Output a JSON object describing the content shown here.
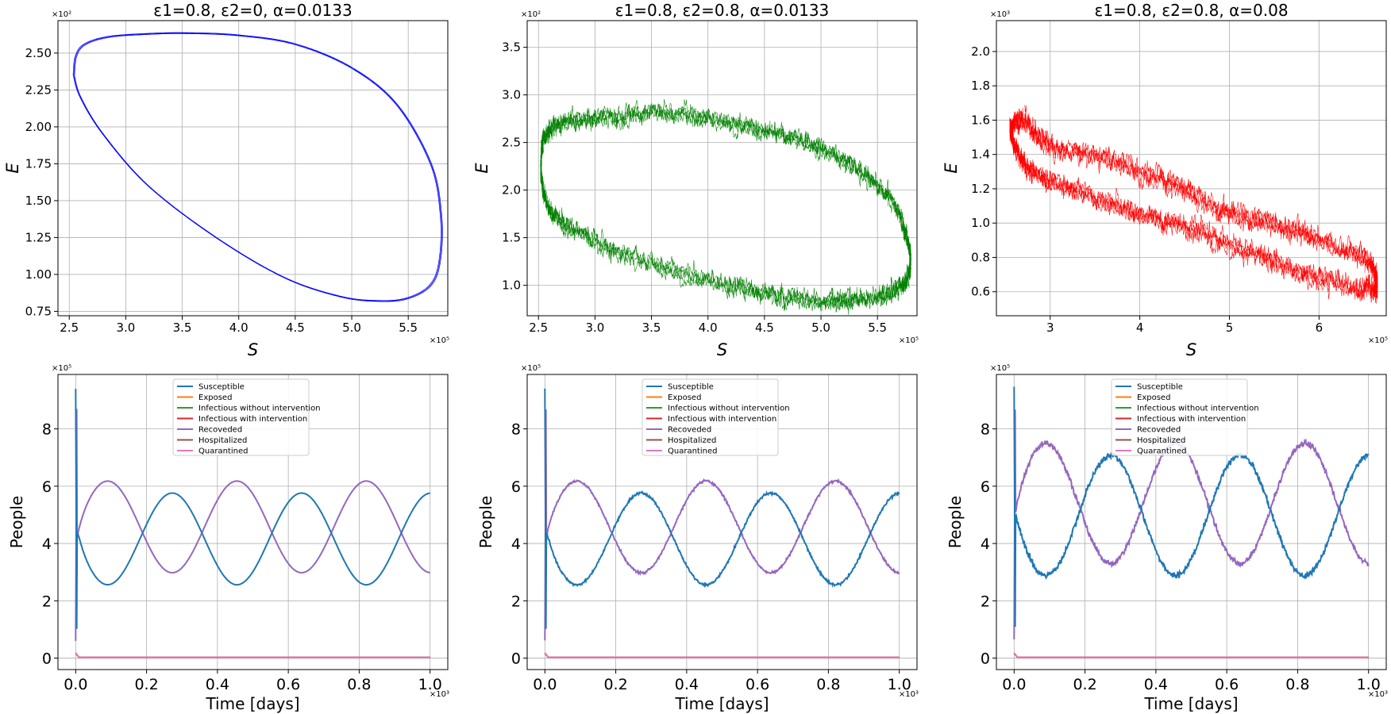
{
  "colors": {
    "blue": "#0000ff",
    "green": "#008000",
    "red": "#ff0000",
    "grid": "#b0b0b0",
    "series": [
      "#1f77b4",
      "#ff7f0e",
      "#2ca02c",
      "#d62728",
      "#9467bd",
      "#8c564b",
      "#e377c2"
    ]
  },
  "legend_labels": [
    "Susceptible",
    "Exposed",
    "Infectious without intervention",
    "Infectious with intervention",
    "Recoveded",
    "Hospitalized",
    "Quarantined"
  ],
  "chart_data": [
    {
      "type": "line",
      "title": "ε1=0.8, ε2=0, α=0.0133",
      "xlabel": "S",
      "ylabel": "E",
      "x_mult": "×10⁵",
      "y_mult": "×10²",
      "xlim": [
        2.4,
        5.85
      ],
      "ylim": [
        0.72,
        2.72
      ],
      "xticks": [
        2.5,
        3.0,
        3.5,
        4.0,
        4.5,
        5.0,
        5.5
      ],
      "xtick_labels": [
        "2.5",
        "3.0",
        "3.5",
        "4.0",
        "4.5",
        "5.0",
        "5.5"
      ],
      "yticks": [
        0.75,
        1.0,
        1.25,
        1.5,
        1.75,
        2.0,
        2.25,
        2.5
      ],
      "ytick_labels": [
        "0.75",
        "1.00",
        "1.25",
        "1.50",
        "1.75",
        "2.00",
        "2.25",
        "2.50"
      ],
      "grid": true,
      "color": "blue",
      "cycle": {
        "x": [
          2.54,
          2.56,
          2.64,
          2.85,
          3.2,
          3.55,
          4.0,
          4.5,
          5.0,
          5.4,
          5.7,
          5.79,
          5.78,
          5.7,
          5.5,
          5.25,
          4.9,
          4.4,
          3.8,
          3.2,
          2.8,
          2.6,
          2.54
        ],
        "y": [
          2.35,
          2.48,
          2.56,
          2.61,
          2.63,
          2.635,
          2.62,
          2.56,
          2.4,
          2.15,
          1.75,
          1.4,
          1.1,
          0.93,
          0.84,
          0.82,
          0.85,
          0.98,
          1.25,
          1.6,
          1.95,
          2.2,
          2.35
        ]
      },
      "noise": 0
    },
    {
      "type": "line",
      "title": "ε1=0.8, ε2=0.8, α=0.0133",
      "xlabel": "S",
      "ylabel": "E",
      "x_mult": "×10⁵",
      "y_mult": "×10²",
      "xlim": [
        2.4,
        5.85
      ],
      "ylim": [
        0.68,
        3.78
      ],
      "xticks": [
        2.5,
        3.0,
        3.5,
        4.0,
        4.5,
        5.0,
        5.5
      ],
      "xtick_labels": [
        "2.5",
        "3.0",
        "3.5",
        "4.0",
        "4.5",
        "5.0",
        "5.5"
      ],
      "yticks": [
        1.0,
        1.5,
        2.0,
        2.5,
        3.0,
        3.5
      ],
      "ytick_labels": [
        "1.0",
        "1.5",
        "2.0",
        "2.5",
        "3.0",
        "3.5"
      ],
      "grid": true,
      "color": "green",
      "cycle": {
        "x": [
          2.52,
          2.55,
          2.7,
          3.0,
          3.4,
          3.8,
          4.2,
          4.6,
          5.0,
          5.35,
          5.65,
          5.78,
          5.77,
          5.6,
          5.3,
          5.0,
          4.6,
          4.2,
          3.7,
          3.2,
          2.8,
          2.58,
          2.52
        ],
        "y": [
          2.2,
          2.55,
          2.7,
          2.75,
          2.8,
          2.8,
          2.7,
          2.6,
          2.45,
          2.2,
          1.85,
          1.4,
          1.1,
          0.92,
          0.85,
          0.85,
          0.9,
          1.0,
          1.15,
          1.35,
          1.6,
          1.85,
          2.2
        ]
      },
      "noise": 0.14
    },
    {
      "type": "line",
      "title": "ε1=0.8, ε2=0.8, α=0.08",
      "xlabel": "S",
      "ylabel": "E",
      "x_mult": "×10⁵",
      "y_mult": "×10³",
      "xlim": [
        2.4,
        6.75
      ],
      "ylim": [
        0.46,
        2.18
      ],
      "xticks": [
        3,
        4,
        5,
        6
      ],
      "xtick_labels": [
        "3",
        "4",
        "5",
        "6"
      ],
      "yticks": [
        0.6,
        0.8,
        1.0,
        1.2,
        1.4,
        1.6,
        1.8,
        2.0
      ],
      "ytick_labels": [
        "0.6",
        "0.8",
        "1.0",
        "1.2",
        "1.4",
        "1.6",
        "1.8",
        "2.0"
      ],
      "grid": true,
      "color": "red",
      "cycle": {
        "x": [
          2.55,
          2.7,
          3.0,
          3.5,
          4.0,
          4.5,
          5.0,
          5.5,
          6.0,
          6.5,
          6.65,
          6.5,
          6.0,
          5.5,
          5.0,
          4.5,
          4.0,
          3.5,
          3.0,
          2.7,
          2.55
        ],
        "y": [
          1.55,
          1.6,
          1.45,
          1.4,
          1.3,
          1.2,
          1.05,
          1.0,
          0.9,
          0.8,
          0.65,
          0.62,
          0.68,
          0.78,
          0.88,
          0.98,
          1.05,
          1.15,
          1.25,
          1.35,
          1.55
        ]
      },
      "noise": 0.16
    },
    {
      "type": "line",
      "xlabel": "Time [days]",
      "ylabel": "People",
      "x_mult": "×10³",
      "y_mult": "×10⁵",
      "xlim": [
        -0.05,
        1.05
      ],
      "ylim": [
        -0.4,
        9.9
      ],
      "xticks": [
        0,
        0.2,
        0.4,
        0.6,
        0.8,
        1.0
      ],
      "xtick_labels": [
        "0.0",
        "0.2",
        "0.4",
        "0.6",
        "0.8",
        "1.0"
      ],
      "yticks": [
        0,
        2,
        4,
        6,
        8
      ],
      "ytick_labels": [
        "0",
        "2",
        "4",
        "6",
        "8"
      ],
      "grid": true,
      "legend": "upper center",
      "dynamics": {
        "noise": 0,
        "period": 0.365,
        "mean": 4.16,
        "amp": 1.6,
        "phase": 0.09,
        "recovered_min": 6.85
      }
    },
    {
      "type": "line",
      "xlabel": "Time [days]",
      "ylabel": "People",
      "x_mult": "×10³",
      "y_mult": "×10⁵",
      "xlim": [
        -0.05,
        1.05
      ],
      "ylim": [
        -0.4,
        9.9
      ],
      "xticks": [
        0,
        0.2,
        0.4,
        0.6,
        0.8,
        1.0
      ],
      "xtick_labels": [
        "0.0",
        "0.2",
        "0.4",
        "0.6",
        "0.8",
        "1.0"
      ],
      "yticks": [
        0,
        2,
        4,
        6,
        8
      ],
      "ytick_labels": [
        "0",
        "2",
        "4",
        "6",
        "8"
      ],
      "grid": true,
      "legend": "upper center",
      "dynamics": {
        "noise": 0.04,
        "period": 0.365,
        "mean": 4.16,
        "amp": 1.6,
        "phase": 0.09,
        "recovered_min": 6.85
      }
    },
    {
      "type": "line",
      "xlabel": "Time [days]",
      "ylabel": "People",
      "x_mult": "×10³",
      "y_mult": "×10⁵",
      "xlim": [
        -0.05,
        1.05
      ],
      "ylim": [
        -0.4,
        9.9
      ],
      "xticks": [
        0,
        0.2,
        0.4,
        0.6,
        0.8,
        1.0
      ],
      "xtick_labels": [
        "0.0",
        "0.2",
        "0.4",
        "0.6",
        "0.8",
        "1.0"
      ],
      "yticks": [
        0,
        2,
        4,
        6,
        8
      ],
      "ytick_labels": [
        "0",
        "2",
        "4",
        "6",
        "8"
      ],
      "grid": true,
      "legend": "upper center",
      "dynamics": {
        "noise": 0.1,
        "period": 0.365,
        "mean": 4.98,
        "amp": 2.1,
        "phase": 0.09,
        "recovered_min": 6.5
      }
    }
  ]
}
